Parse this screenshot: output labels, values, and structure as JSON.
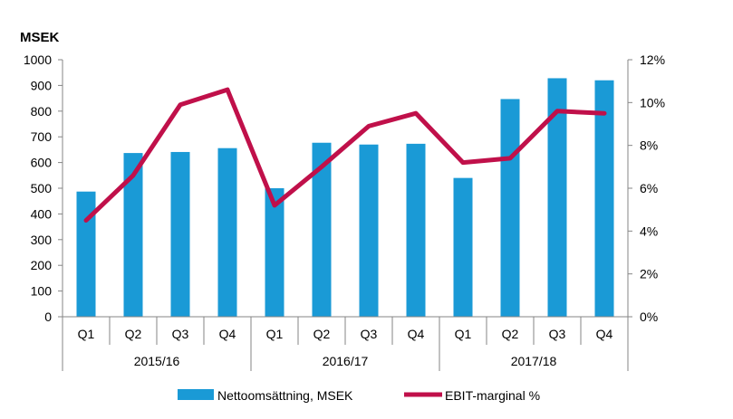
{
  "chart_data": {
    "type": "bar",
    "y_unit_label": "MSEK",
    "categories": [
      "Q1",
      "Q2",
      "Q3",
      "Q4",
      "Q1",
      "Q2",
      "Q3",
      "Q4",
      "Q1",
      "Q2",
      "Q3",
      "Q4"
    ],
    "groups": [
      {
        "label": "2015/16",
        "count": 4
      },
      {
        "label": "2016/17",
        "count": 4
      },
      {
        "label": "2017/18",
        "count": 4
      }
    ],
    "series": [
      {
        "name": "Nettoomsättning, MSEK",
        "type": "bar",
        "axis": "left",
        "color": "#1a9ad6",
        "values": [
          487,
          637,
          641,
          656,
          500,
          677,
          670,
          673,
          540,
          847,
          928,
          920
        ]
      },
      {
        "name": "EBIT-marginal %",
        "type": "line",
        "axis": "right",
        "color": "#c0104a",
        "values": [
          4.5,
          6.6,
          9.9,
          10.6,
          5.2,
          7.0,
          8.9,
          9.5,
          7.2,
          7.4,
          9.6,
          9.5
        ]
      }
    ],
    "y_left": {
      "min": 0,
      "max": 1000,
      "step": 100,
      "ticks": [
        "0",
        "100",
        "200",
        "300",
        "400",
        "500",
        "600",
        "700",
        "800",
        "900",
        "1000"
      ]
    },
    "y_right": {
      "min": 0,
      "max": 12,
      "step": 2,
      "ticks": [
        "0%",
        "2%",
        "4%",
        "6%",
        "8%",
        "10%",
        "12%"
      ]
    },
    "grid": false,
    "legend_position": "bottom"
  }
}
